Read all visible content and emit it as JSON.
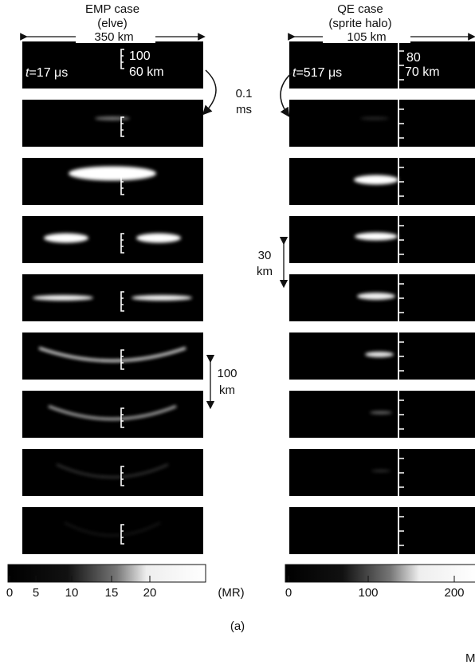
{
  "columns": [
    {
      "title": "EMP case",
      "subtitle": "(elve)",
      "width_label": "350 km",
      "alt_top": "100",
      "alt_bottom": "60 km",
      "time_var": "t",
      "time_value": "=17 μs",
      "colorbar": {
        "ticks": [
          "0",
          "5",
          "10",
          "15",
          "20"
        ],
        "unit": "(MR)"
      }
    },
    {
      "title": "QE case",
      "subtitle": "(sprite halo)",
      "width_label": "105 km",
      "alt_top": "80",
      "alt_bottom": "70 km",
      "time_var": "t",
      "time_value": "=517 μs",
      "colorbar": {
        "ticks": [
          "0",
          "100",
          "200"
        ]
      }
    }
  ],
  "annotations": {
    "time_step": [
      "0.1",
      "ms"
    ],
    "scale_qe": [
      "30",
      "km"
    ],
    "scale_emp": [
      "100",
      "km"
    ]
  },
  "panel_label": "(a)",
  "corner_text": "M"
}
